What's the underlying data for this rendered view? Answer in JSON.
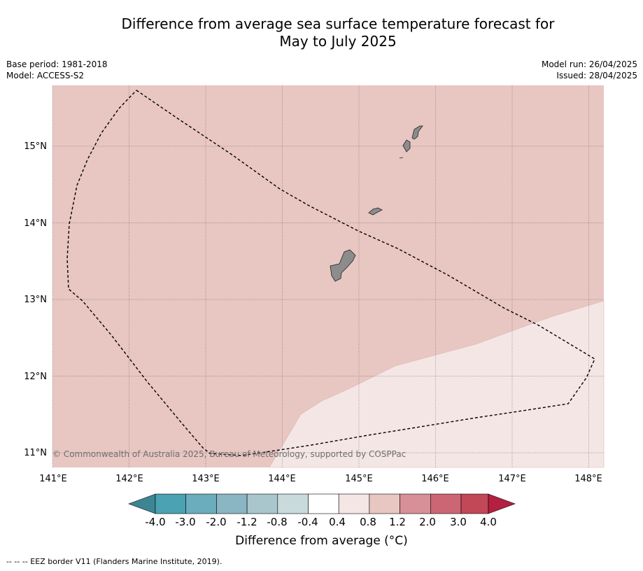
{
  "title_line1": "Difference from average sea surface temperature forecast for",
  "title_line2": "May to July 2025",
  "meta": {
    "base_period": "Base period: 1981-2018",
    "model": "Model: ACCESS-S2",
    "model_run": "Model run: 26/04/2025",
    "issued": "Issued: 28/04/2025"
  },
  "map": {
    "lon_ticks": [
      "141°E",
      "142°E",
      "143°E",
      "144°E",
      "145°E",
      "146°E",
      "147°E",
      "148°E"
    ],
    "lat_ticks": [
      "15°N",
      "14°N",
      "13°N",
      "12°N",
      "11°N"
    ],
    "lon_range": [
      141.0,
      148.2
    ],
    "lat_range": [
      10.8,
      15.8
    ],
    "fill_colors": {
      "band_0.8_1.2": "#e8c6c2",
      "band_0.4_0.8": "#f4e6e4",
      "land": "#8c8c8c"
    },
    "copyright": "© Commonwealth of Australia 2025, Bureau of Meteorology, supported by COSPPac"
  },
  "colorbar": {
    "labels": [
      "-4.0",
      "-3.0",
      "-2.0",
      "-1.2",
      "-0.8",
      "-0.4",
      "0.4",
      "0.8",
      "1.2",
      "2.0",
      "3.0",
      "4.0"
    ],
    "colors": [
      "#3e8594",
      "#4aa2b3",
      "#6badbd",
      "#8ab5c2",
      "#a8c6cc",
      "#c9dadd",
      "#ffffff",
      "#f4e6e4",
      "#e8c6c2",
      "#d78f98",
      "#cd6674",
      "#c24757",
      "#b42040"
    ],
    "title": "Difference from average (°C)"
  },
  "footnote": "--  --  -- EEZ border V11 (Flanders Marine Institute, 2019)."
}
